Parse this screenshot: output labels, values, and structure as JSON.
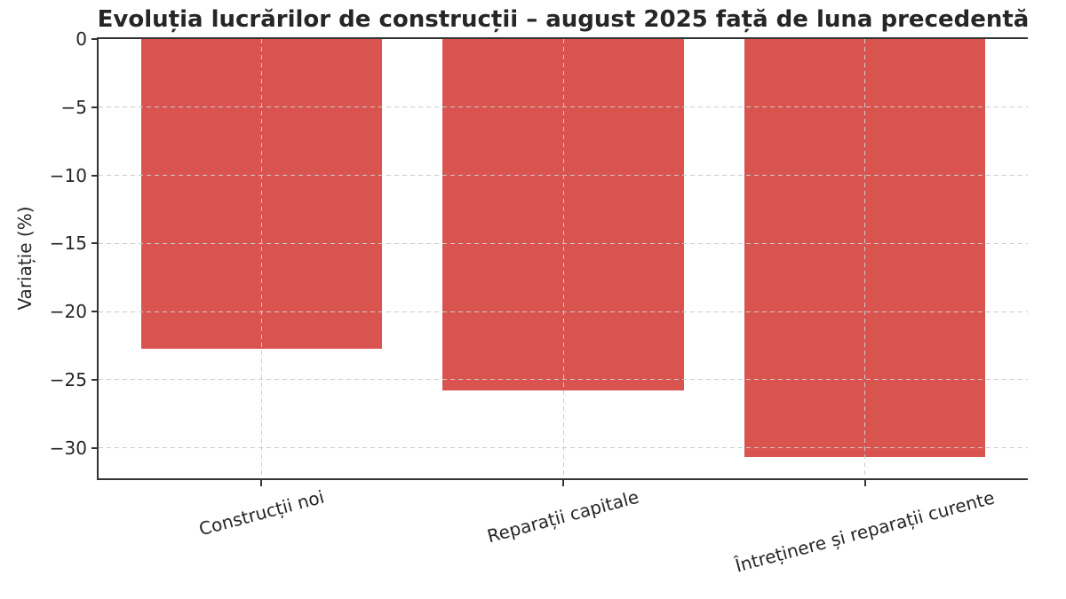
{
  "chart_data": {
    "type": "bar",
    "title": "Evoluția lucrărilor de construcții – august 2025 față de luna precedentă",
    "ylabel": "Variație (%)",
    "xlabel": "",
    "categories": [
      "Construcții noi",
      "Reparații capitale",
      "Întreținere și reparații curente"
    ],
    "values": [
      -22.7,
      -25.8,
      -30.7
    ],
    "yticks": [
      0,
      -5,
      -10,
      -15,
      -20,
      -25,
      -30
    ],
    "ytick_labels": [
      "0",
      "−5",
      "−10",
      "−15",
      "−20",
      "−25",
      "−30"
    ],
    "ylim": [
      -32.24,
      0
    ],
    "bar_color": "#d9534f",
    "grid": true,
    "grid_color": "#cccccc",
    "grid_style": "dashed",
    "spine_color": "#333333",
    "text_color": "#262626",
    "background_color": "#ffffff",
    "xtick_rotation_deg": 15,
    "legend": "none"
  }
}
